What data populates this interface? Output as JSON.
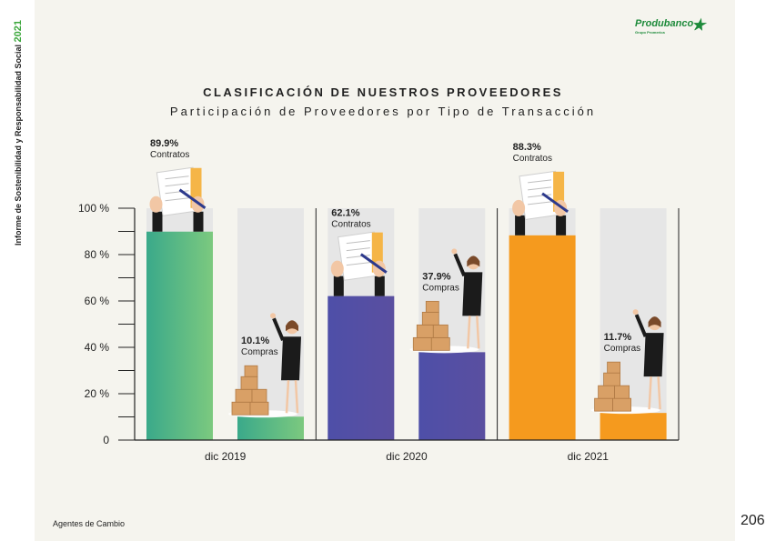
{
  "report": {
    "side_text": "Informe de Sostenibilidad y Responsabilidad Social",
    "side_year": "2021",
    "footer_section": "Agentes de Cambio",
    "page_number": "206"
  },
  "logo": {
    "name": "Produbanco",
    "subtitle": "Grupo Promerica"
  },
  "chart_data": {
    "type": "bar",
    "title": "CLASIFICACIÓN DE NUESTROS PROVEEDORES",
    "subtitle": "Participación de Proveedores por Tipo de Transacción",
    "categories": [
      "dic 2019",
      "dic 2020",
      "dic 2021"
    ],
    "series": [
      {
        "name": "Contratos",
        "values": [
          89.9,
          62.1,
          88.3
        ]
      },
      {
        "name": "Compras",
        "values": [
          10.1,
          37.9,
          11.7
        ]
      }
    ],
    "data_labels": {
      "Contratos": [
        "89.9%",
        "62.1%",
        "88.3%"
      ],
      "Compras": [
        "10.1%",
        "37.9%",
        "11.7%"
      ]
    },
    "y_ticks": [
      "0",
      "20 %",
      "40 %",
      "60 %",
      "80 %",
      "100 %"
    ],
    "ylim": [
      0,
      100
    ],
    "colors": {
      "dic 2019": [
        "#3aa98a",
        "#7cc97f"
      ],
      "dic 2020": [
        "#4e4fa8",
        "#5a4fa0"
      ],
      "dic 2021": [
        "#f59a1e",
        "#f59a1e"
      ],
      "track": "#e6e6e6"
    },
    "icons": {
      "Contratos": "contract-signing-icon",
      "Compras": "boxes-woman-icon"
    }
  }
}
